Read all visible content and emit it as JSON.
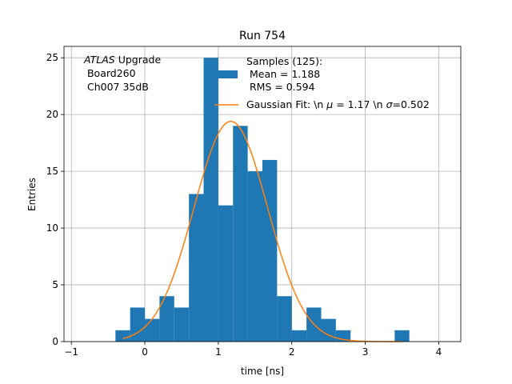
{
  "chart_data": {
    "type": "bar",
    "title": "Run 754",
    "xlabel": "time [ns]",
    "ylabel": "Entries",
    "xlim": [
      -1.1,
      4.3
    ],
    "ylim": [
      0,
      26
    ],
    "grid": true,
    "x_ticks": [
      -1,
      0,
      1,
      2,
      3,
      4
    ],
    "y_ticks": [
      0,
      5,
      10,
      15,
      20,
      25
    ],
    "bin_width": 0.2,
    "bins": [
      {
        "left": -0.4,
        "count": 1
      },
      {
        "left": -0.2,
        "count": 3
      },
      {
        "left": 0.0,
        "count": 2
      },
      {
        "left": 0.2,
        "count": 4
      },
      {
        "left": 0.4,
        "count": 3
      },
      {
        "left": 0.6,
        "count": 13
      },
      {
        "left": 0.8,
        "count": 25
      },
      {
        "left": 1.0,
        "count": 12
      },
      {
        "left": 1.2,
        "count": 19
      },
      {
        "left": 1.4,
        "count": 15
      },
      {
        "left": 1.6,
        "count": 16
      },
      {
        "left": 1.8,
        "count": 4
      },
      {
        "left": 2.0,
        "count": 1
      },
      {
        "left": 2.2,
        "count": 3
      },
      {
        "left": 2.4,
        "count": 2
      },
      {
        "left": 2.6,
        "count": 1
      },
      {
        "left": 3.4,
        "count": 1
      }
    ],
    "fit": {
      "mu": 1.17,
      "sigma": 0.502,
      "amplitude": 19.4,
      "x_start": -0.3,
      "x_end": 3.5
    },
    "colors": {
      "bars": "#1f77b4",
      "fit": "#ff7f0e",
      "grid": "#b0b0b0"
    },
    "annotation": {
      "italic": "ATLAS",
      "line1_rest": " Upgrade",
      "line2": " Board260",
      "line3": " Ch007 35dB"
    },
    "legend": {
      "placement": "top-right",
      "samples_line1": "Samples (125):",
      "samples_line2": " Mean = 1.188",
      "samples_line3": " RMS = 0.594",
      "fit_part1": "Gaussian Fit: \\n ",
      "fit_mu": "μ",
      "fit_part2": " = 1.17 \\n ",
      "fit_sigma": "σ",
      "fit_part3": "=0.502"
    }
  }
}
